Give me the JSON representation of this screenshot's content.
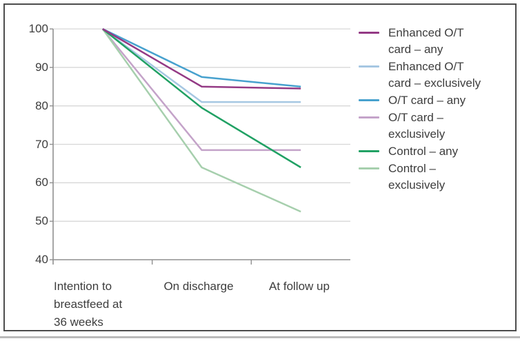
{
  "chart_data": {
    "type": "line",
    "title": "",
    "xlabel": "",
    "ylabel": "",
    "x_categories": [
      "Intention to\nbreastfeed at\n36 weeks",
      "On discharge",
      "At follow up"
    ],
    "y_ticks": [
      100,
      90,
      80,
      70,
      60,
      50,
      40
    ],
    "ylim": [
      40,
      100
    ],
    "grid": true,
    "legend_position": "right",
    "series": [
      {
        "name": "Enhanced O/T\ncard – any",
        "color": "#943a85",
        "values": [
          100,
          85,
          84.5
        ]
      },
      {
        "name": "Enhanced O/T\ncard – exclusively",
        "color": "#a6c7e2",
        "values": [
          100,
          81,
          81
        ]
      },
      {
        "name": "O/T card – any",
        "color": "#47a1ce",
        "values": [
          100,
          87.5,
          85
        ]
      },
      {
        "name": "O/T card –\nexclusively",
        "color": "#c4a3c9",
        "values": [
          100,
          68.5,
          68.5
        ]
      },
      {
        "name": "Control – any",
        "color": "#21a164",
        "values": [
          100,
          79.5,
          64
        ]
      },
      {
        "name": "Control –\nexclusively",
        "color": "#a6cfad",
        "values": [
          100,
          64,
          52.5
        ]
      }
    ],
    "draw_order": [
      1,
      3,
      5,
      4,
      2,
      0
    ]
  },
  "colors": {
    "frame_border": "#4c4c4c",
    "axis": "#8f8f8f",
    "grid": "#d7d7d7",
    "text": "#3d3d3d",
    "bottom_rule": "#aeaeae"
  }
}
